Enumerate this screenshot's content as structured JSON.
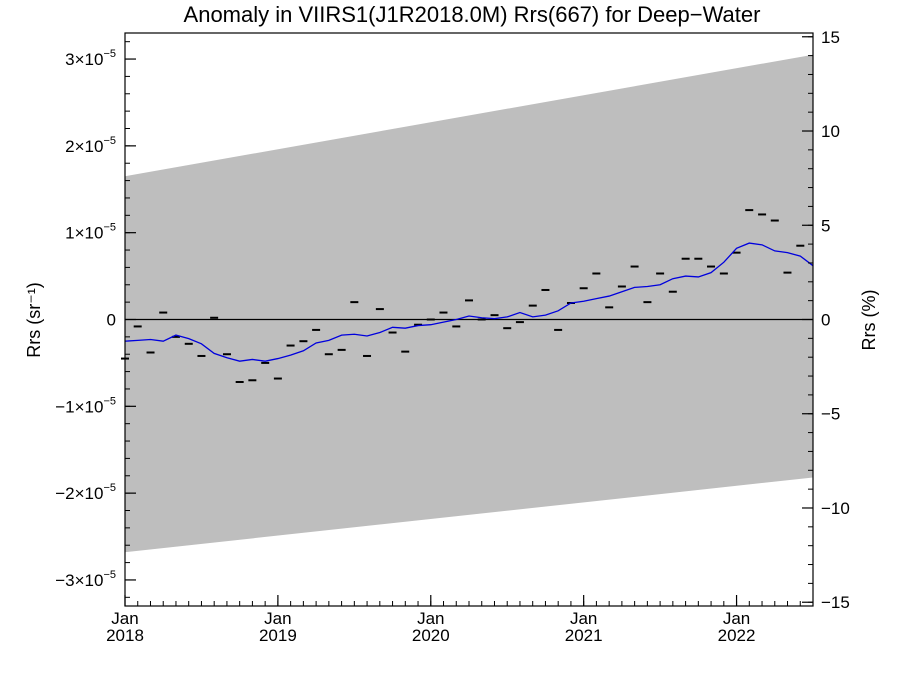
{
  "chart_data": {
    "type": "line",
    "title": "Anomaly in VIIRS1(J1R2018.0M) Rrs(667) for Deep−Water",
    "ylabel_left": "Rrs (sr⁻¹)",
    "ylabel_right": "Rrs (%)",
    "x_axis": {
      "unit": "decimal year",
      "range": [
        2018.0,
        2022.5
      ],
      "major_ticks": [
        {
          "x": 2018.0,
          "month": "Jan",
          "year": "2018"
        },
        {
          "x": 2019.0,
          "month": "Jan",
          "year": "2019"
        },
        {
          "x": 2020.0,
          "month": "Jan",
          "year": "2020"
        },
        {
          "x": 2021.0,
          "month": "Jan",
          "year": "2021"
        },
        {
          "x": 2022.0,
          "month": "Jan",
          "year": "2022"
        }
      ],
      "minor_tick_step_months": 1
    },
    "y_left": {
      "unit": "1e-5 sr^-1",
      "range": [
        -3.3,
        3.3
      ],
      "major_ticks": [
        {
          "v": 3,
          "mant": "3×10",
          "exp": "−5"
        },
        {
          "v": 2,
          "mant": "2×10",
          "exp": "−5"
        },
        {
          "v": 1,
          "mant": "1×10",
          "exp": "−5"
        },
        {
          "v": 0,
          "mant": "0",
          "exp": ""
        },
        {
          "v": -1,
          "mant": "−1×10",
          "exp": "−5"
        },
        {
          "v": -2,
          "mant": "−2×10",
          "exp": "−5"
        },
        {
          "v": -3,
          "mant": "−3×10",
          "exp": "−5"
        }
      ],
      "minor_step": 0.2
    },
    "y_right": {
      "unit": "percent",
      "range": [
        -15.2,
        15.2
      ],
      "major_ticks": [
        {
          "v": 15,
          "label": "15"
        },
        {
          "v": 10,
          "label": "10"
        },
        {
          "v": 5,
          "label": "5"
        },
        {
          "v": 0,
          "label": "0"
        },
        {
          "v": -5,
          "label": "−5"
        },
        {
          "v": -10,
          "label": "−10"
        },
        {
          "v": -15,
          "label": "−15"
        }
      ],
      "minor_step": 1
    },
    "zero_line": true,
    "uncertainty_band": {
      "x": [
        2018.0,
        2022.5
      ],
      "upper": [
        1.65,
        3.05
      ],
      "lower": [
        -2.68,
        -1.82
      ],
      "color": "#bebebe"
    },
    "monthly_points": {
      "color": "#000000",
      "x": [
        2018.0,
        2018.083,
        2018.167,
        2018.25,
        2018.333,
        2018.417,
        2018.5,
        2018.583,
        2018.667,
        2018.75,
        2018.833,
        2018.917,
        2019.0,
        2019.083,
        2019.167,
        2019.25,
        2019.333,
        2019.417,
        2019.5,
        2019.583,
        2019.667,
        2019.75,
        2019.833,
        2019.917,
        2020.0,
        2020.083,
        2020.167,
        2020.25,
        2020.333,
        2020.417,
        2020.5,
        2020.583,
        2020.667,
        2020.75,
        2020.833,
        2020.917,
        2021.0,
        2021.083,
        2021.167,
        2021.25,
        2021.333,
        2021.417,
        2021.5,
        2021.583,
        2021.667,
        2021.75,
        2021.833,
        2021.917,
        2022.0,
        2022.083,
        2022.167,
        2022.25,
        2022.333,
        2022.417
      ],
      "y": [
        -0.45,
        -0.08,
        -0.38,
        0.08,
        -0.2,
        -0.28,
        -0.42,
        0.02,
        -0.4,
        -0.72,
        -0.7,
        -0.5,
        -0.68,
        -0.3,
        -0.25,
        -0.12,
        -0.4,
        -0.35,
        0.2,
        -0.42,
        0.12,
        -0.15,
        -0.37,
        -0.06,
        0.0,
        0.08,
        -0.08,
        0.22,
        0.0,
        0.05,
        -0.1,
        -0.03,
        0.16,
        0.34,
        -0.12,
        0.19,
        0.36,
        0.53,
        0.14,
        0.38,
        0.61,
        0.2,
        0.53,
        0.32,
        0.7,
        0.7,
        0.61,
        0.53,
        0.77,
        1.26,
        1.21,
        1.14,
        0.54,
        0.85
      ]
    },
    "series": [
      {
        "name": "",
        "color": "#0000dd",
        "x": [
          2018.0,
          2018.083,
          2018.167,
          2018.25,
          2018.333,
          2018.417,
          2018.5,
          2018.583,
          2018.667,
          2018.75,
          2018.833,
          2018.917,
          2019.0,
          2019.083,
          2019.167,
          2019.25,
          2019.333,
          2019.417,
          2019.5,
          2019.583,
          2019.667,
          2019.75,
          2019.833,
          2019.917,
          2020.0,
          2020.083,
          2020.167,
          2020.25,
          2020.333,
          2020.417,
          2020.5,
          2020.583,
          2020.667,
          2020.75,
          2020.833,
          2020.917,
          2021.0,
          2021.083,
          2021.167,
          2021.25,
          2021.333,
          2021.417,
          2021.5,
          2021.583,
          2021.667,
          2021.75,
          2021.833,
          2021.917,
          2022.0,
          2022.083,
          2022.167,
          2022.25,
          2022.333,
          2022.417,
          2022.5
        ],
        "y": [
          -0.25,
          -0.24,
          -0.23,
          -0.25,
          -0.18,
          -0.22,
          -0.28,
          -0.39,
          -0.44,
          -0.48,
          -0.46,
          -0.48,
          -0.45,
          -0.41,
          -0.36,
          -0.27,
          -0.24,
          -0.18,
          -0.17,
          -0.19,
          -0.15,
          -0.09,
          -0.1,
          -0.07,
          -0.06,
          -0.03,
          0.0,
          0.04,
          0.02,
          0.01,
          0.03,
          0.08,
          0.03,
          0.05,
          0.1,
          0.19,
          0.21,
          0.24,
          0.27,
          0.32,
          0.37,
          0.38,
          0.4,
          0.47,
          0.5,
          0.49,
          0.54,
          0.66,
          0.82,
          0.88,
          0.86,
          0.79,
          0.77,
          0.73,
          0.62
        ]
      }
    ]
  }
}
